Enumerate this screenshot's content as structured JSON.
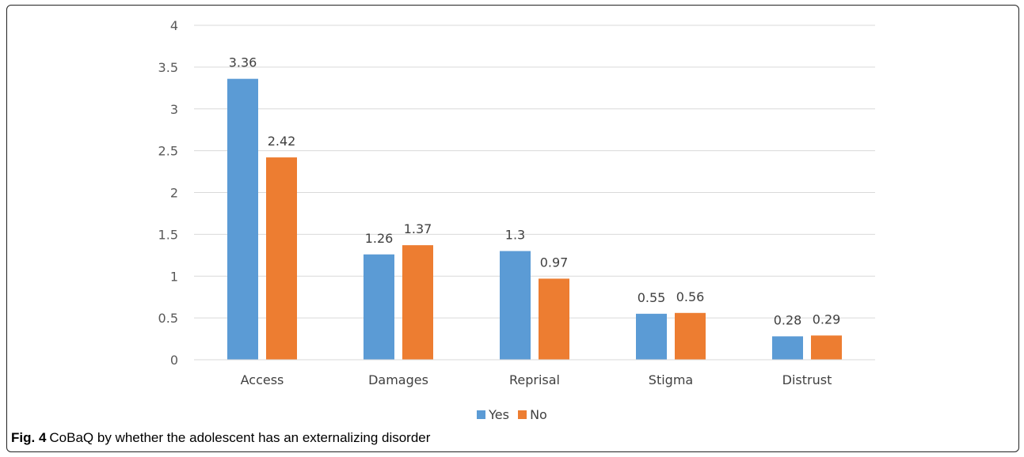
{
  "figure": {
    "caption_label": "Fig. 4",
    "caption_text": "CoBaQ by whether the adolescent has an externalizing disorder"
  },
  "colors": {
    "yes": "#5B9BD5",
    "no": "#ED7D31",
    "grid": "#D9D9D9"
  },
  "chart_data": {
    "type": "bar",
    "title": "",
    "xlabel": "",
    "ylabel": "",
    "categories": [
      "Access",
      "Damages",
      "Reprisal",
      "Stigma",
      "Distrust"
    ],
    "series": [
      {
        "name": "Yes",
        "values": [
          3.36,
          1.26,
          1.3,
          0.55,
          0.28
        ],
        "labels": [
          "3.36",
          "1.26",
          "1.3",
          "0.55",
          "0.28"
        ]
      },
      {
        "name": "No",
        "values": [
          2.42,
          1.37,
          0.97,
          0.56,
          0.29
        ],
        "labels": [
          "2.42",
          "1.37",
          "0.97",
          "0.56",
          "0.29"
        ]
      }
    ],
    "ylim": [
      0,
      4
    ],
    "yticks": [
      "0",
      "0.5",
      "1",
      "1.5",
      "2",
      "2.5",
      "3",
      "3.5",
      "4"
    ],
    "grid": true,
    "legend_position": "bottom"
  }
}
